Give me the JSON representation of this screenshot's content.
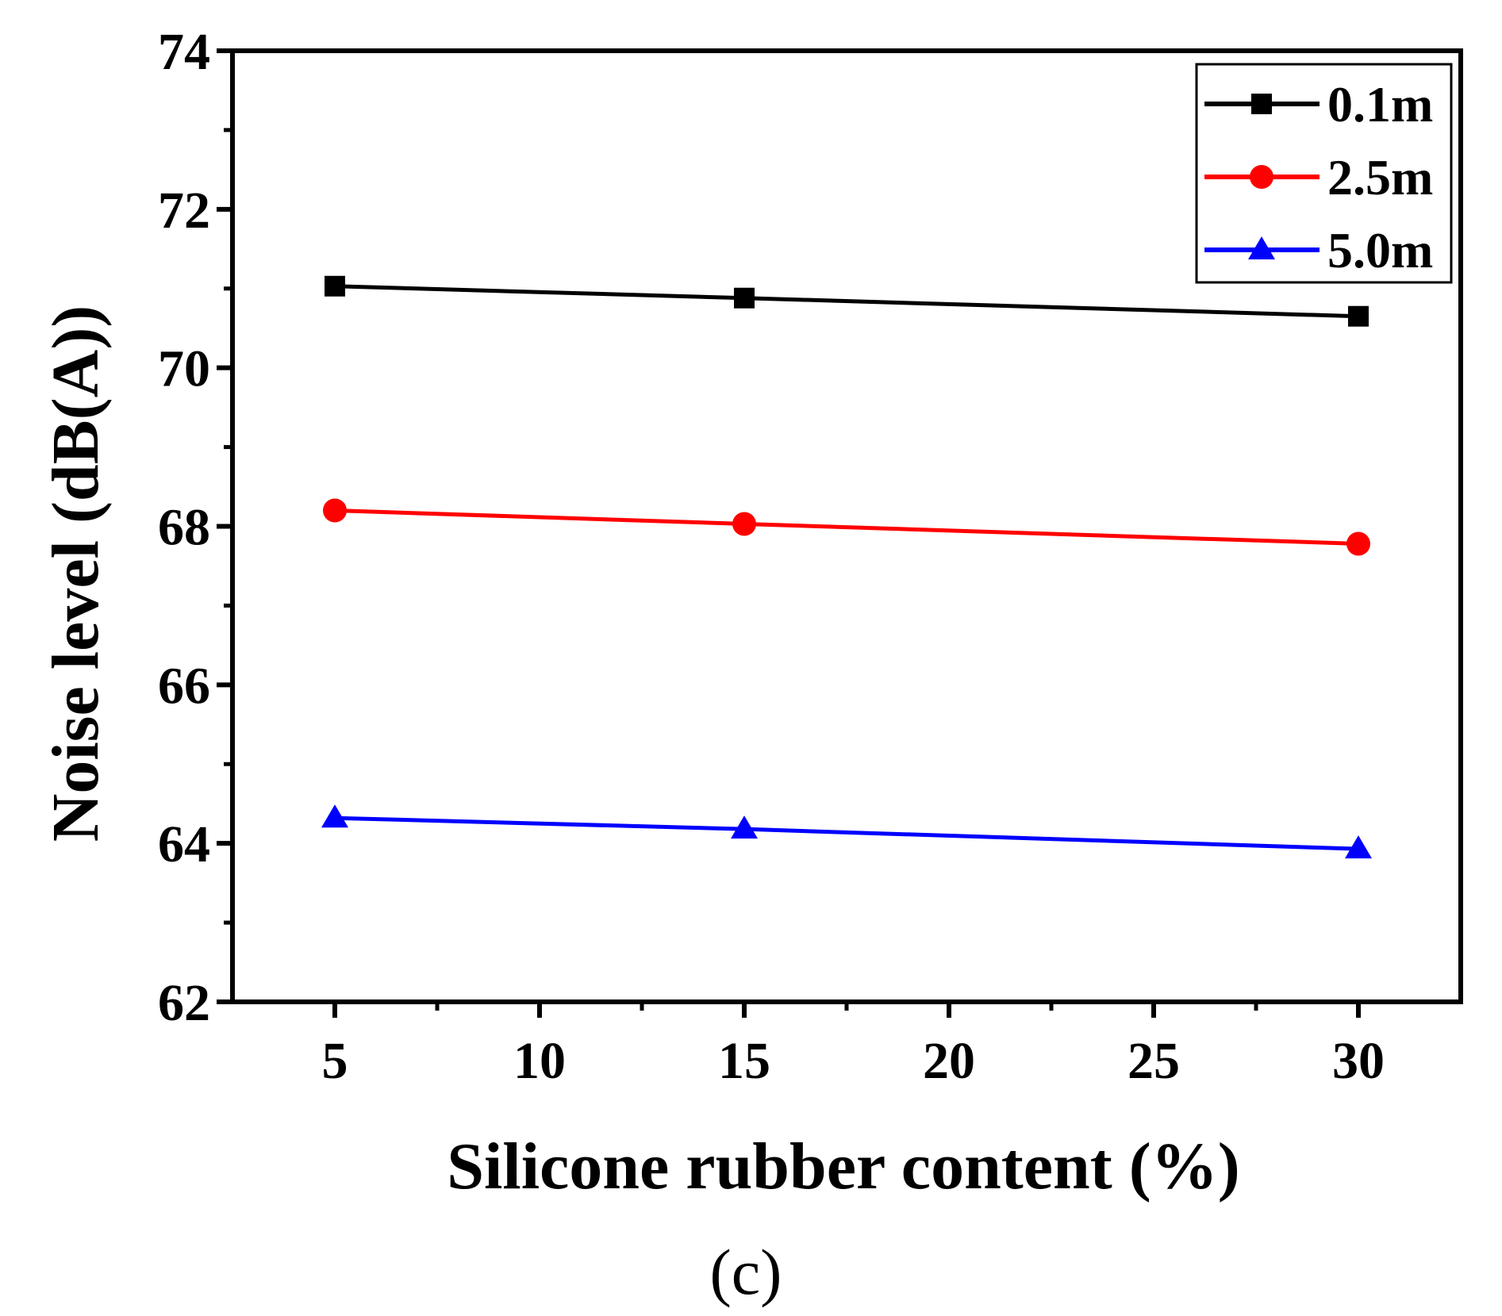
{
  "chart_data": {
    "type": "line",
    "xlabel": "Silicone rubber content (%)",
    "ylabel": "Noise level (dB(A))",
    "caption": "(c)",
    "xlim": [
      2.5,
      32.5
    ],
    "ylim": [
      62,
      74
    ],
    "xticks": [
      5,
      10,
      15,
      20,
      25,
      30
    ],
    "yticks": [
      62,
      64,
      66,
      68,
      70,
      72,
      74
    ],
    "grid": false,
    "legend_position": "top-right",
    "series": [
      {
        "name": "0.1m",
        "color": "#000000",
        "marker": "square",
        "x": [
          5,
          15,
          30
        ],
        "y": [
          71.03,
          70.88,
          70.65
        ]
      },
      {
        "name": "2.5m",
        "color": "#ff0000",
        "marker": "circle",
        "x": [
          5,
          15,
          30
        ],
        "y": [
          68.2,
          68.03,
          67.78
        ]
      },
      {
        "name": "5.0m",
        "color": "#0000ff",
        "marker": "triangle",
        "x": [
          5,
          15,
          30
        ],
        "y": [
          64.32,
          64.18,
          63.93
        ]
      }
    ]
  }
}
